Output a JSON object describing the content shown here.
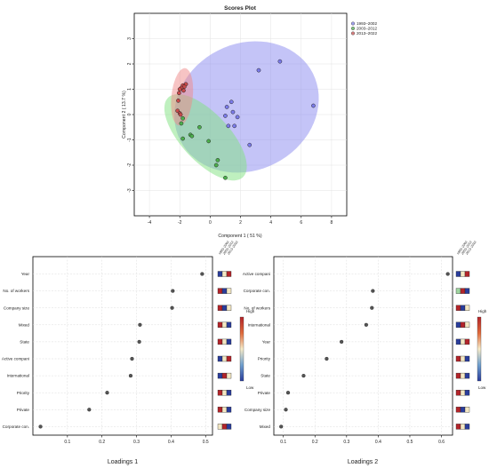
{
  "chart_data": [
    {
      "type": "scatter",
      "title": "Scores Plot",
      "xlabel": "Component 1 ( 51 %)",
      "ylabel": "Component 2 ( 13.7 %)",
      "xlim": [
        -5,
        9
      ],
      "ylim": [
        -4,
        4
      ],
      "xticks": [
        -4,
        -2,
        0,
        2,
        4,
        6,
        8
      ],
      "yticks": [
        -3,
        -2,
        -1,
        0,
        1,
        2,
        3
      ],
      "grid": true,
      "legend_position": "top-right",
      "series": [
        {
          "name": "1993–2002",
          "color": "#7b7bea",
          "fill": "#8a8af0",
          "ellipse": {
            "cx": 2.4,
            "cy": 0.3,
            "rx": 4.9,
            "ry": 2.5,
            "angle_deg": 27
          },
          "points": [
            {
              "x": 4.6,
              "y": 2.1
            },
            {
              "x": 3.2,
              "y": 1.75
            },
            {
              "x": 6.8,
              "y": 0.35
            },
            {
              "x": 1.4,
              "y": 0.5
            },
            {
              "x": 1.1,
              "y": 0.3
            },
            {
              "x": 1.5,
              "y": 0.1
            },
            {
              "x": 1.8,
              "y": -0.1
            },
            {
              "x": 1.0,
              "y": -0.05
            },
            {
              "x": 1.2,
              "y": -0.45
            },
            {
              "x": 1.6,
              "y": -0.45
            },
            {
              "x": 2.6,
              "y": -1.2
            }
          ]
        },
        {
          "name": "2003–2012",
          "color": "#4caf4c",
          "fill": "#7fe27f",
          "ellipse": {
            "cx": -0.3,
            "cy": -0.9,
            "rx": 3.6,
            "ry": 0.95,
            "angle_deg": -47
          },
          "points": [
            {
              "x": -1.8,
              "y": -0.15
            },
            {
              "x": -1.9,
              "y": -0.35
            },
            {
              "x": -1.3,
              "y": -0.8
            },
            {
              "x": -1.2,
              "y": -0.85
            },
            {
              "x": -1.8,
              "y": -0.95
            },
            {
              "x": -0.7,
              "y": -0.5
            },
            {
              "x": -0.1,
              "y": -1.05
            },
            {
              "x": 0.5,
              "y": -1.8
            },
            {
              "x": 0.4,
              "y": -2.0
            },
            {
              "x": 1.0,
              "y": -2.5
            }
          ]
        },
        {
          "name": "2013–2022",
          "color": "#c94a4a",
          "fill": "#f08a8a",
          "ellipse": {
            "cx": -1.85,
            "cy": 0.7,
            "rx": 1.9,
            "ry": 0.42,
            "angle_deg": 84
          },
          "points": [
            {
              "x": -1.6,
              "y": 1.2
            },
            {
              "x": -1.8,
              "y": 1.15
            },
            {
              "x": -1.7,
              "y": 1.1
            },
            {
              "x": -1.9,
              "y": 1.05
            },
            {
              "x": -2.0,
              "y": 1.0
            },
            {
              "x": -1.75,
              "y": 0.95
            },
            {
              "x": -2.05,
              "y": 0.85
            },
            {
              "x": -2.1,
              "y": 0.55
            },
            {
              "x": -2.15,
              "y": 0.15
            },
            {
              "x": -2.0,
              "y": 0.05
            },
            {
              "x": -1.95,
              "y": 0.0
            }
          ]
        }
      ]
    },
    {
      "type": "scatter",
      "xlabel": "Loadings 1",
      "xlim": [
        0.0,
        0.52
      ],
      "xticks": [
        0.1,
        0.2,
        0.3,
        0.4,
        0.5
      ],
      "heat_columns": [
        "1993–2002",
        "2003–2012",
        "2013–2022"
      ],
      "colorbar": {
        "high": "High",
        "low": "Low"
      },
      "rows": [
        {
          "label": "Year",
          "value": 0.49,
          "heat": [
            "#2a3d9b",
            "#f3e7c3",
            "#b3242a"
          ]
        },
        {
          "label": "No. of workers",
          "value": 0.405,
          "heat": [
            "#b3242a",
            "#2a3d9b",
            "#f3e7c3"
          ]
        },
        {
          "label": "Company size",
          "value": 0.403,
          "heat": [
            "#b3242a",
            "#2a3d9b",
            "#f3e7c3"
          ]
        },
        {
          "label": "Mixed",
          "value": 0.31,
          "heat": [
            "#b3242a",
            "#f3e7c3",
            "#2a3d9b"
          ]
        },
        {
          "label": "State",
          "value": 0.308,
          "heat": [
            "#b3242a",
            "#f3e7c3",
            "#2a3d9b"
          ]
        },
        {
          "label": "Active compani",
          "value": 0.287,
          "heat": [
            "#2a3d9b",
            "#f3e7c3",
            "#b3242a"
          ]
        },
        {
          "label": "International",
          "value": 0.283,
          "heat": [
            "#2a3d9b",
            "#b3242a",
            "#f3e7c3"
          ]
        },
        {
          "label": "Priority",
          "value": 0.215,
          "heat": [
            "#b3242a",
            "#f3e7c3",
            "#2a3d9b"
          ]
        },
        {
          "label": "Private",
          "value": 0.163,
          "heat": [
            "#b3242a",
            "#f3e7c3",
            "#2a3d9b"
          ]
        },
        {
          "label": "Corporate con.",
          "value": 0.022,
          "heat": [
            "#f3e7c3",
            "#b3242a",
            "#2a3d9b"
          ]
        }
      ]
    },
    {
      "type": "scatter",
      "xlabel": "Loadings 2",
      "xlim": [
        0.07,
        0.635
      ],
      "xticks": [
        0.1,
        0.2,
        0.3,
        0.4,
        0.5,
        0.6
      ],
      "heat_columns": [
        "1993–2002",
        "2003–2012",
        "2013–2022"
      ],
      "colorbar": {
        "high": "High",
        "low": "Low"
      },
      "rows": [
        {
          "label": "Active compani",
          "value": 0.62,
          "heat": [
            "#2a3d9b",
            "#f3e7c3",
            "#b3242a"
          ]
        },
        {
          "label": "Corporate con.",
          "value": 0.383,
          "heat": [
            "#9fd49f",
            "#b3242a",
            "#2a3d9b"
          ]
        },
        {
          "label": "No. of workers",
          "value": 0.38,
          "heat": [
            "#b3242a",
            "#2a3d9b",
            "#f3e7c3"
          ]
        },
        {
          "label": "International",
          "value": 0.362,
          "heat": [
            "#2a3d9b",
            "#b3242a",
            "#f3e7c3"
          ]
        },
        {
          "label": "Year",
          "value": 0.284,
          "heat": [
            "#2a3d9b",
            "#f3e7c3",
            "#b3242a"
          ]
        },
        {
          "label": "Priority",
          "value": 0.237,
          "heat": [
            "#b3242a",
            "#f3e7c3",
            "#2a3d9b"
          ]
        },
        {
          "label": "State",
          "value": 0.164,
          "heat": [
            "#b3242a",
            "#f3e7c3",
            "#2a3d9b"
          ]
        },
        {
          "label": "Private",
          "value": 0.115,
          "heat": [
            "#b3242a",
            "#f3e7c3",
            "#2a3d9b"
          ]
        },
        {
          "label": "Company size",
          "value": 0.108,
          "heat": [
            "#b3242a",
            "#2a3d9b",
            "#f3e7c3"
          ]
        },
        {
          "label": "Mixed",
          "value": 0.093,
          "heat": [
            "#b3242a",
            "#f3e7c3",
            "#2a3d9b"
          ]
        }
      ]
    }
  ]
}
